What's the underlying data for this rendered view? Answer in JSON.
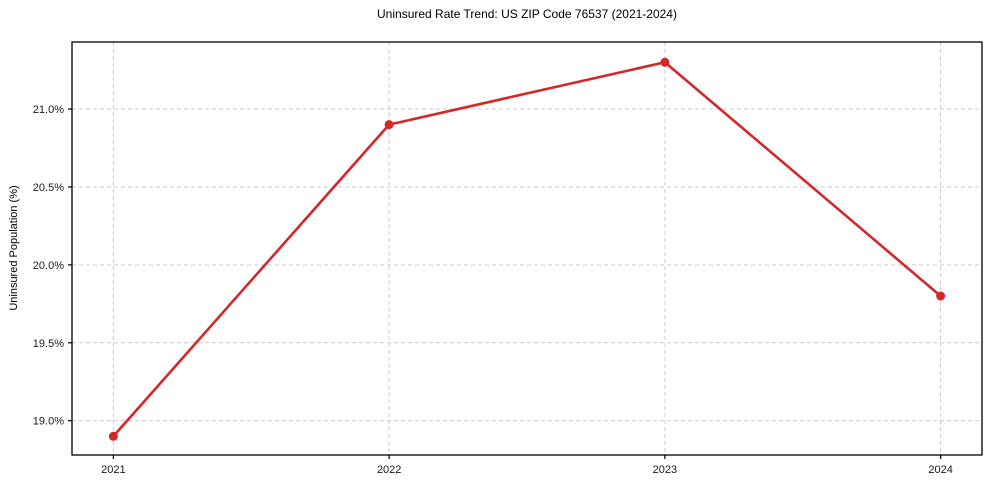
{
  "chart_data": {
    "type": "line",
    "title": "Uninsured Rate Trend: US ZIP Code 76537 (2021-2024)",
    "xlabel": "",
    "ylabel": "Uninsured Population (%)",
    "x": [
      2021,
      2022,
      2023,
      2024
    ],
    "x_tick_labels": [
      "2021",
      "2022",
      "2023",
      "2024"
    ],
    "values": [
      18.9,
      20.9,
      21.3,
      19.8
    ],
    "y_ticks": [
      {
        "value": 19.0,
        "label": "19.0%"
      },
      {
        "value": 19.5,
        "label": "19.5%"
      },
      {
        "value": 20.0,
        "label": "20.0%"
      },
      {
        "value": 20.5,
        "label": "20.5%"
      },
      {
        "value": 21.0,
        "label": "21.0%"
      }
    ],
    "xlim": [
      2020.85,
      2024.15
    ],
    "ylim": [
      18.78,
      21.43
    ],
    "grid": true,
    "legend": "none",
    "marker": "circle",
    "line_color": "#d62728",
    "grid_color": "#cccccc",
    "axis_color": "#000000",
    "tick_label_color": "#1a1a1a",
    "background_color": "#ffffff"
  }
}
